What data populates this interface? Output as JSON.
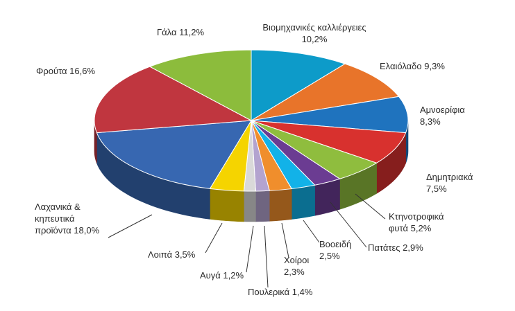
{
  "chart_data": {
    "type": "pie",
    "title": "",
    "style": "3d",
    "start": "top, clockwise",
    "slices": [
      {
        "label": "Βιομηχανικές καλλιέργειες",
        "value": 10.2,
        "color": "#0d9bc9",
        "lines": [
          "Βιομηχανικές καλλιέργειες",
          "10,2%"
        ]
      },
      {
        "label": "Ελαιόλαδο",
        "value": 9.3,
        "color": "#e8742a",
        "lines": [
          "Ελαιόλαδο 9,3%"
        ]
      },
      {
        "label": "Αμνοερίφια",
        "value": 8.3,
        "color": "#1f73be",
        "lines": [
          "Αμνοερίφια",
          "8,3%"
        ]
      },
      {
        "label": "Δημητριακά",
        "value": 7.5,
        "color": "#d8312e",
        "lines": [
          "Δημητριακά",
          "7,5%"
        ]
      },
      {
        "label": "Κτηνοτροφικά φυτά",
        "value": 5.2,
        "color": "#8fbd3e",
        "lines": [
          "Κτηνοτροφικά",
          "φυτά 5,2%"
        ]
      },
      {
        "label": "Πατάτες",
        "value": 2.9,
        "color": "#6b3c92",
        "lines": [
          "Πατάτες 2,9%"
        ]
      },
      {
        "label": "Βοοειδή",
        "value": 2.5,
        "color": "#12b2e8",
        "lines": [
          "Βοοειδή",
          "2,5%"
        ]
      },
      {
        "label": "Χοίροι",
        "value": 2.3,
        "color": "#f08e2c",
        "lines": [
          "Χοίροι",
          "2,3%"
        ]
      },
      {
        "label": "Πουλερικά",
        "value": 1.4,
        "color": "#b3a3cf",
        "lines": [
          "Πουλερικά 1,4%"
        ]
      },
      {
        "label": "Αυγά",
        "value": 1.2,
        "color": "#d9d9d9",
        "lines": [
          "Αυγά 1,2%"
        ]
      },
      {
        "label": "Λοιπά",
        "value": 3.5,
        "color": "#f5d400",
        "lines": [
          "Λοιπά 3,5%"
        ]
      },
      {
        "label": "Λαχανικά & κηπευτικά προϊόντα",
        "value": 18.0,
        "color": "#3767b1",
        "lines": [
          "Λαχανικά &",
          "κηπευτικά",
          "προϊόντα 18,0%"
        ]
      },
      {
        "label": "Φρούτα",
        "value": 16.6,
        "color": "#c0363f",
        "lines": [
          "Φρούτα 16,6%"
        ]
      },
      {
        "label": "Γάλα",
        "value": 11.2,
        "color": "#8cbc3c",
        "lines": [
          "Γάλα 11,2%"
        ]
      }
    ]
  }
}
